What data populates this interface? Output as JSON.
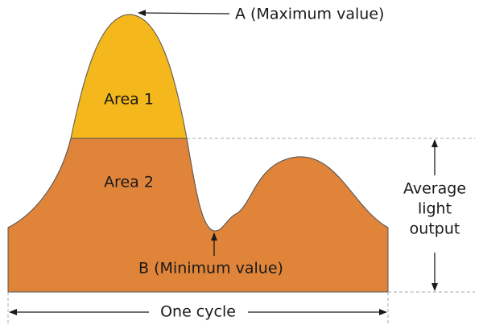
{
  "labels": {
    "maximum": "A (Maximum value)",
    "minimum": "B (Minimum value)",
    "area1": "Area 1",
    "area2": "Area 2",
    "average": [
      "Average",
      "light",
      "output"
    ],
    "cycle": "One cycle"
  }
}
